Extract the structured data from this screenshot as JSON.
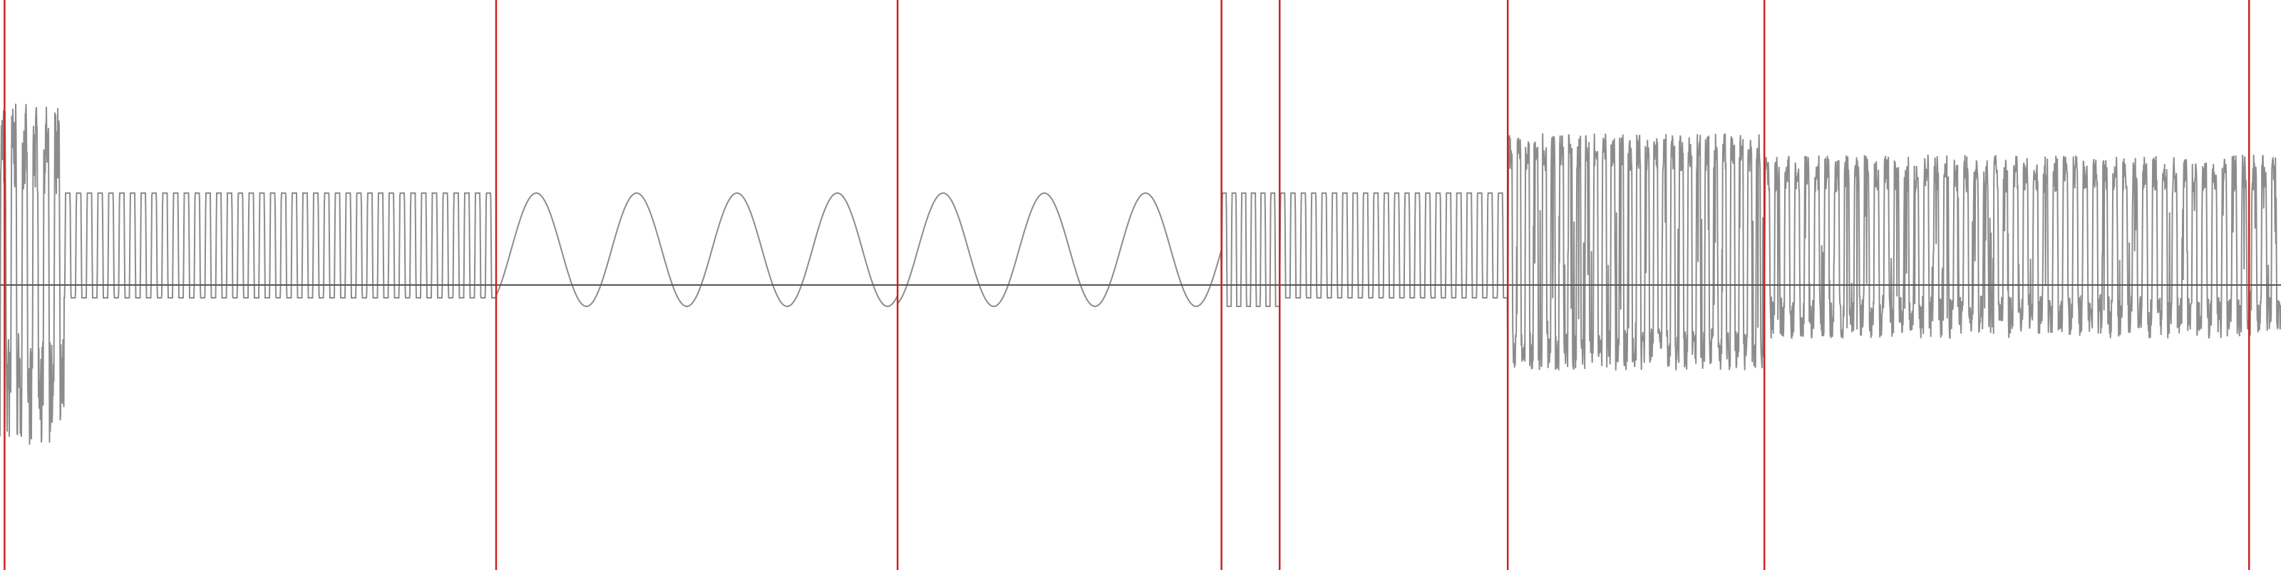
{
  "chart_data": {
    "type": "line",
    "title": "",
    "xlabel": "",
    "ylabel": "",
    "grid": false,
    "legend": "none",
    "ylim": [
      -1.1,
      0.6
    ],
    "baseline": 0,
    "colors": {
      "waveform": "#8c8c8c",
      "baseline": "#555555",
      "marker": "#cc2222",
      "background": "#ffffff"
    },
    "markers": [
      0.002,
      0.2175,
      0.3935,
      0.5355,
      0.561,
      0.661,
      0.7735,
      0.986
    ],
    "segments": [
      {
        "start": 0.0,
        "end": 0.2175,
        "kind": "pulse",
        "cycles": 46,
        "peak": 0.43,
        "trough": -0.06,
        "burst_end": 0.028,
        "burst_peak": 0.85,
        "burst_trough": -0.75
      },
      {
        "start": 0.2175,
        "end": 0.3935,
        "kind": "sine",
        "cycles": 4,
        "peak": 0.43,
        "trough": -0.1,
        "phase": 0.1
      },
      {
        "start": 0.3935,
        "end": 0.5355,
        "kind": "sine",
        "cycles": 3.2,
        "peak": 0.43,
        "trough": -0.1,
        "phase": 0.05
      },
      {
        "start": 0.5355,
        "end": 0.561,
        "kind": "pulse",
        "cycles": 6,
        "peak": 0.43,
        "trough": -0.1
      },
      {
        "start": 0.561,
        "end": 0.661,
        "kind": "pulse",
        "cycles": 22,
        "peak": 0.43,
        "trough": -0.06
      },
      {
        "start": 0.661,
        "end": 0.7735,
        "kind": "noisy",
        "cycles": 30,
        "peak": 0.62,
        "trough": -0.3
      },
      {
        "start": 0.7735,
        "end": 1.0,
        "kind": "noisy",
        "cycles": 52,
        "peak": 0.52,
        "trough": -0.15
      }
    ]
  }
}
